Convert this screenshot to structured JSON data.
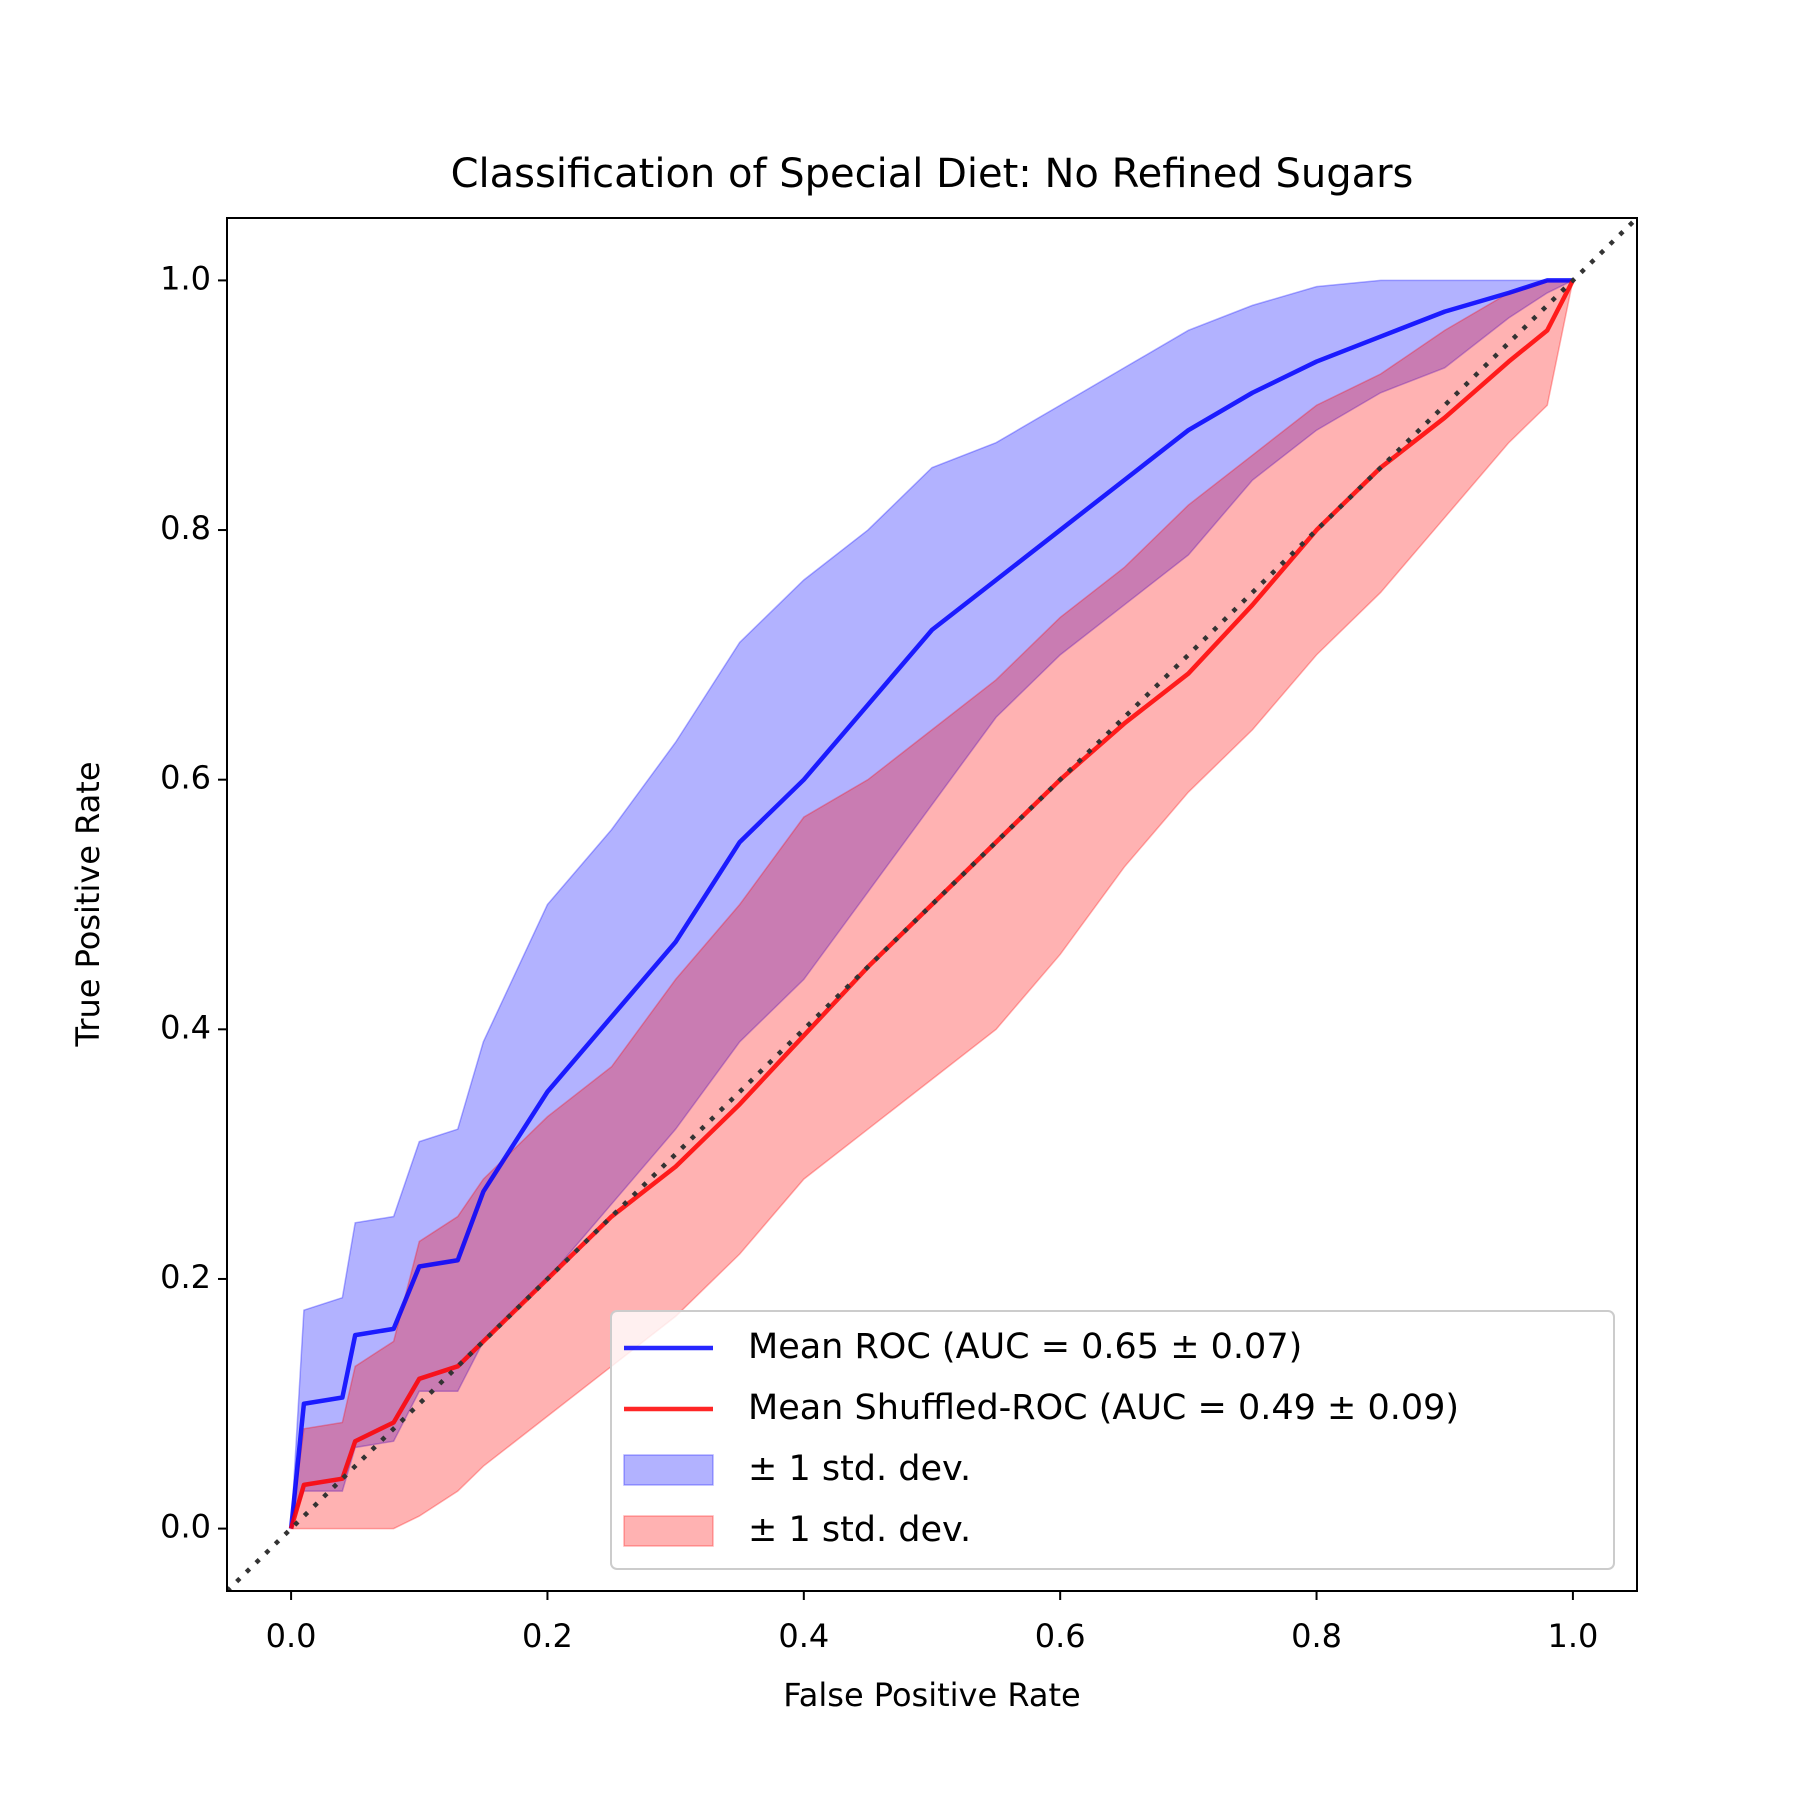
{
  "chart_data": {
    "type": "line",
    "title": "Classification of Special Diet: No Refined Sugars",
    "x_label": "False Positive Rate",
    "y_label": "True Positive Rate",
    "xlim": [
      -0.05,
      1.05
    ],
    "ylim": [
      -0.05,
      1.05
    ],
    "xticks": [
      {
        "value": 0,
        "label": "0.0"
      },
      0.2,
      0.4,
      0.6,
      0.8,
      {
        "value": 1,
        "label": "1.0"
      }
    ],
    "yticks": [
      {
        "value": 0,
        "label": "0.0"
      },
      0.2,
      0.4,
      0.6,
      0.8,
      {
        "value": 1,
        "label": "1.0"
      }
    ],
    "legend_position": "lower right",
    "x": [
      0,
      0.01,
      0.04,
      0.05,
      0.08,
      0.1,
      0.13,
      0.15,
      0.2,
      0.25,
      0.3,
      0.35,
      0.4,
      0.45,
      0.5,
      0.55,
      0.6,
      0.65,
      0.7,
      0.75,
      0.8,
      0.85,
      0.9,
      0.95,
      0.98,
      1
    ],
    "series": [
      {
        "name": "Mean ROC (AUC = 0.65 ± 0.07)",
        "color": "#0000ff",
        "values": [
          0,
          0.1,
          0.105,
          0.155,
          0.16,
          0.21,
          0.215,
          0.27,
          0.35,
          0.41,
          0.47,
          0.55,
          0.6,
          0.66,
          0.72,
          0.76,
          0.8,
          0.84,
          0.88,
          0.91,
          0.935,
          0.955,
          0.975,
          0.99,
          1,
          1
        ]
      },
      {
        "name": "Mean Shuffled-ROC (AUC = 0.49 ± 0.09)",
        "color": "#ff0000",
        "values": [
          0,
          0.035,
          0.04,
          0.07,
          0.085,
          0.12,
          0.13,
          0.15,
          0.2,
          0.25,
          0.29,
          0.34,
          0.395,
          0.45,
          0.5,
          0.55,
          0.6,
          0.645,
          0.685,
          0.74,
          0.8,
          0.85,
          0.89,
          0.935,
          0.96,
          1
        ]
      }
    ],
    "bands": [
      {
        "name": "± 1 std. dev.",
        "color": "#0000ff",
        "upper": [
          0,
          0.175,
          0.185,
          0.245,
          0.25,
          0.31,
          0.32,
          0.39,
          0.5,
          0.56,
          0.63,
          0.71,
          0.76,
          0.8,
          0.85,
          0.87,
          0.9,
          0.93,
          0.96,
          0.98,
          0.995,
          1,
          1,
          1,
          1,
          1
        ],
        "lower": [
          0,
          0.03,
          0.03,
          0.065,
          0.07,
          0.11,
          0.11,
          0.15,
          0.2,
          0.26,
          0.32,
          0.39,
          0.44,
          0.51,
          0.58,
          0.65,
          0.7,
          0.74,
          0.78,
          0.84,
          0.88,
          0.91,
          0.93,
          0.97,
          0.99,
          1
        ]
      },
      {
        "name": "± 1 std. dev.",
        "color": "#ff0000",
        "upper": [
          0,
          0.08,
          0.085,
          0.13,
          0.15,
          0.23,
          0.25,
          0.28,
          0.33,
          0.37,
          0.44,
          0.5,
          0.57,
          0.6,
          0.64,
          0.68,
          0.73,
          0.77,
          0.82,
          0.86,
          0.9,
          0.925,
          0.96,
          0.99,
          1,
          1
        ],
        "lower": [
          0,
          0,
          0,
          0,
          0,
          0.01,
          0.03,
          0.05,
          0.09,
          0.13,
          0.17,
          0.22,
          0.28,
          0.32,
          0.36,
          0.4,
          0.46,
          0.53,
          0.59,
          0.64,
          0.7,
          0.75,
          0.81,
          0.87,
          0.9,
          1
        ]
      }
    ]
  }
}
